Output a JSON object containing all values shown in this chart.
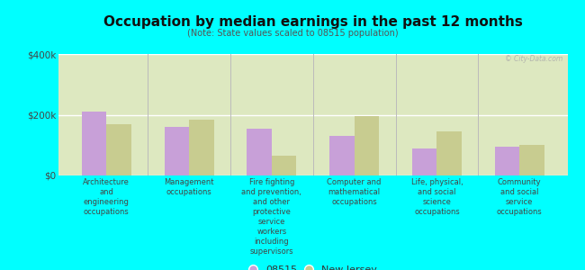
{
  "title": "Occupation by median earnings in the past 12 months",
  "subtitle": "(Note: State values scaled to 08515 population)",
  "background_color": "#00ffff",
  "plot_bg_color": "#dde8c0",
  "categories": [
    "Architecture\nand\nengineering\noccupations",
    "Management\noccupations",
    "Fire fighting\nand prevention,\nand other\nprotective\nservice\nworkers\nincluding\nsupervisors",
    "Computer and\nmathematical\noccupations",
    "Life, physical,\nand social\nscience\noccupations",
    "Community\nand social\nservice\noccupations"
  ],
  "values_08515": [
    210000,
    160000,
    155000,
    130000,
    90000,
    95000
  ],
  "values_nj": [
    170000,
    185000,
    65000,
    195000,
    145000,
    100000
  ],
  "color_08515": "#c8a0d8",
  "color_nj": "#c8cc90",
  "ylim": [
    0,
    400000
  ],
  "yticks": [
    0,
    200000,
    400000
  ],
  "ytick_labels": [
    "$0",
    "$200k",
    "$400k"
  ],
  "legend_08515": "08515",
  "legend_nj": "New Jersey",
  "bar_width": 0.3,
  "watermark": "© City-Data.com"
}
